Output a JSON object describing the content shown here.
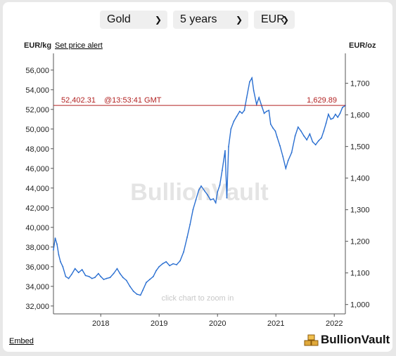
{
  "controls": {
    "metal": "Gold",
    "period": "5 years",
    "currency": "EUR"
  },
  "header": {
    "left_unit": "EUR/kg",
    "alert_link": "Set price alert",
    "right_unit": "EUR/oz"
  },
  "current_price": {
    "left_value": "52,402.31",
    "time": "@13:53:41 GMT",
    "right_value": "1,629.89"
  },
  "watermark": "BullionVault",
  "zoom_hint": "click chart to zoom in",
  "footer": {
    "embed": "Embed",
    "brand": "BullionVault"
  },
  "colors": {
    "line": "#2a6fd1",
    "price_line": "#b22222",
    "axis": "#555555"
  },
  "chart_data": {
    "type": "line",
    "x_ticks": [
      "2018",
      "2019",
      "2020",
      "2021",
      "2022"
    ],
    "left_axis": {
      "label": "EUR/kg",
      "ticks": [
        "32,000",
        "34,000",
        "36,000",
        "38,000",
        "40,000",
        "42,000",
        "44,000",
        "46,000",
        "48,000",
        "50,000",
        "52,000",
        "54,000",
        "56,000"
      ],
      "range": [
        31200,
        57700
      ]
    },
    "right_axis": {
      "label": "EUR/oz",
      "ticks": [
        "1,000",
        "1,100",
        "1,200",
        "1,300",
        "1,400",
        "1,500",
        "1,600",
        "1,700"
      ]
    },
    "x_range": [
      2017.19,
      2022.19
    ],
    "series": [
      {
        "points": [
          [
            2017.19,
            37700
          ],
          [
            2017.22,
            38900
          ],
          [
            2017.25,
            38300
          ],
          [
            2017.28,
            37200
          ],
          [
            2017.31,
            36500
          ],
          [
            2017.35,
            36000
          ],
          [
            2017.4,
            35000
          ],
          [
            2017.45,
            34800
          ],
          [
            2017.5,
            35200
          ],
          [
            2017.56,
            35800
          ],
          [
            2017.62,
            35400
          ],
          [
            2017.68,
            35700
          ],
          [
            2017.74,
            35100
          ],
          [
            2017.8,
            35000
          ],
          [
            2017.85,
            34800
          ],
          [
            2017.9,
            34900
          ],
          [
            2017.96,
            35300
          ],
          [
            2018.0,
            35000
          ],
          [
            2018.05,
            34700
          ],
          [
            2018.1,
            34800
          ],
          [
            2018.16,
            34900
          ],
          [
            2018.22,
            35300
          ],
          [
            2018.28,
            35800
          ],
          [
            2018.33,
            35300
          ],
          [
            2018.38,
            34900
          ],
          [
            2018.44,
            34600
          ],
          [
            2018.5,
            34000
          ],
          [
            2018.56,
            33500
          ],
          [
            2018.62,
            33200
          ],
          [
            2018.68,
            33100
          ],
          [
            2018.72,
            33600
          ],
          [
            2018.78,
            34400
          ],
          [
            2018.84,
            34700
          ],
          [
            2018.9,
            35000
          ],
          [
            2018.95,
            35600
          ],
          [
            2019.0,
            36000
          ],
          [
            2019.06,
            36300
          ],
          [
            2019.12,
            36500
          ],
          [
            2019.18,
            36100
          ],
          [
            2019.24,
            36300
          ],
          [
            2019.3,
            36200
          ],
          [
            2019.36,
            36600
          ],
          [
            2019.42,
            37500
          ],
          [
            2019.48,
            39000
          ],
          [
            2019.53,
            40300
          ],
          [
            2019.58,
            41800
          ],
          [
            2019.63,
            42800
          ],
          [
            2019.68,
            43800
          ],
          [
            2019.72,
            44200
          ],
          [
            2019.78,
            43700
          ],
          [
            2019.83,
            43300
          ],
          [
            2019.88,
            42800
          ],
          [
            2019.93,
            42900
          ],
          [
            2019.97,
            42500
          ],
          [
            2020.0,
            43600
          ],
          [
            2020.04,
            44300
          ],
          [
            2020.08,
            45800
          ],
          [
            2020.13,
            47800
          ],
          [
            2020.16,
            43000
          ],
          [
            2020.19,
            48200
          ],
          [
            2020.23,
            50000
          ],
          [
            2020.28,
            50800
          ],
          [
            2020.33,
            51300
          ],
          [
            2020.38,
            51800
          ],
          [
            2020.42,
            51600
          ],
          [
            2020.46,
            51900
          ],
          [
            2020.5,
            53200
          ],
          [
            2020.55,
            54800
          ],
          [
            2020.59,
            55200
          ],
          [
            2020.62,
            53900
          ],
          [
            2020.67,
            52500
          ],
          [
            2020.71,
            53200
          ],
          [
            2020.76,
            52300
          ],
          [
            2020.8,
            51600
          ],
          [
            2020.84,
            51800
          ],
          [
            2020.88,
            51900
          ],
          [
            2020.91,
            50500
          ],
          [
            2020.95,
            50100
          ],
          [
            2020.99,
            49800
          ],
          [
            2021.02,
            49200
          ],
          [
            2021.07,
            48300
          ],
          [
            2021.12,
            47200
          ],
          [
            2021.17,
            46000
          ],
          [
            2021.21,
            46800
          ],
          [
            2021.27,
            47600
          ],
          [
            2021.33,
            49300
          ],
          [
            2021.38,
            50200
          ],
          [
            2021.43,
            49800
          ],
          [
            2021.48,
            49300
          ],
          [
            2021.53,
            48900
          ],
          [
            2021.58,
            49500
          ],
          [
            2021.63,
            48700
          ],
          [
            2021.68,
            48400
          ],
          [
            2021.73,
            48800
          ],
          [
            2021.78,
            49100
          ],
          [
            2021.82,
            49800
          ],
          [
            2021.86,
            50600
          ],
          [
            2021.9,
            51500
          ],
          [
            2021.94,
            51000
          ],
          [
            2021.98,
            51100
          ],
          [
            2022.02,
            51500
          ],
          [
            2022.06,
            51200
          ],
          [
            2022.1,
            51600
          ],
          [
            2022.14,
            52200
          ],
          [
            2022.19,
            52400
          ]
        ]
      }
    ]
  }
}
